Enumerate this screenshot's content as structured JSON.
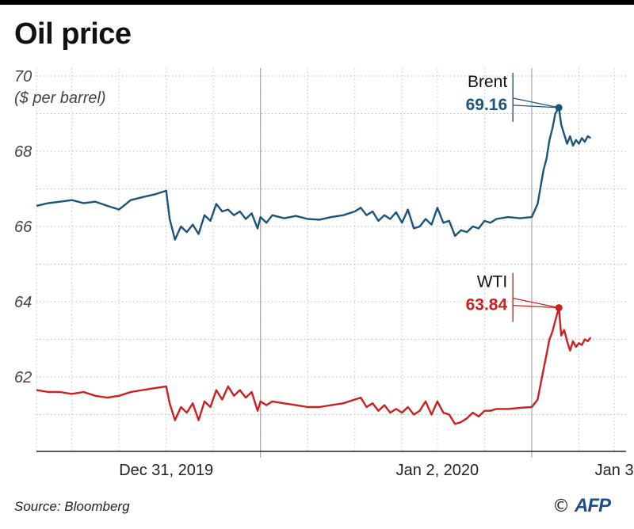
{
  "title": "Oil price",
  "source": "Source: Bloomberg",
  "logo": {
    "copyright": "©",
    "brand": "AFP"
  },
  "chart_data": {
    "type": "line",
    "ylabel_value": "70",
    "ylabel": "($ per barrel)",
    "ylim": [
      60.2,
      70
    ],
    "yticks": [
      62,
      64,
      66,
      68,
      70
    ],
    "xlim": [
      0,
      100
    ],
    "xticks": [
      {
        "label": "Dec 31, 2019",
        "x": 22
      },
      {
        "label": "Jan 2, 2020",
        "x": 68
      },
      {
        "label": "Jan 3",
        "x": 98
      }
    ],
    "day_separators": [
      38,
      84
    ],
    "grid": true,
    "series": [
      {
        "name": "Brent",
        "color": "#1b5479",
        "last_label": "69.16",
        "marker": {
          "x": 88.6,
          "y": 69.16
        },
        "x": [
          0,
          2,
          4,
          6,
          8,
          10,
          12,
          14,
          16,
          18,
          20,
          22,
          22.6,
          23.5,
          24.5,
          25.5,
          26.5,
          27.5,
          28.5,
          29.5,
          30.5,
          31.5,
          32.5,
          33.5,
          34.5,
          35.5,
          36.5,
          37.5,
          38,
          39,
          40,
          42,
          44,
          46,
          48,
          50,
          52,
          54,
          55,
          56,
          57,
          58,
          59,
          60,
          61,
          62,
          63,
          64,
          65,
          66,
          67,
          68,
          69,
          70,
          71,
          72,
          73,
          74,
          75,
          76,
          77,
          78,
          80,
          82,
          84,
          85,
          86,
          86.5,
          87,
          87.5,
          88,
          88.6,
          89,
          89.5,
          90,
          90.5,
          91,
          91.5,
          92,
          92.5,
          93,
          93.5,
          94
        ],
        "values": [
          66.55,
          66.62,
          66.66,
          66.7,
          66.62,
          66.66,
          66.55,
          66.45,
          66.7,
          66.78,
          66.85,
          66.95,
          66.2,
          65.65,
          66.0,
          65.85,
          66.05,
          65.8,
          66.3,
          66.15,
          66.6,
          66.4,
          66.45,
          66.3,
          66.4,
          66.2,
          66.35,
          65.95,
          66.25,
          66.1,
          66.3,
          66.22,
          66.28,
          66.2,
          66.18,
          66.25,
          66.3,
          66.4,
          66.5,
          66.3,
          66.4,
          66.15,
          66.3,
          66.2,
          66.38,
          66.1,
          66.45,
          65.95,
          66.0,
          66.2,
          66.05,
          66.5,
          66.1,
          66.15,
          65.75,
          65.9,
          65.85,
          66.0,
          65.95,
          66.15,
          66.1,
          66.2,
          66.25,
          66.22,
          66.25,
          66.6,
          67.5,
          67.8,
          68.3,
          68.6,
          69.0,
          69.16,
          68.7,
          68.45,
          68.2,
          68.4,
          68.15,
          68.3,
          68.2,
          68.35,
          68.25,
          68.4,
          68.35
        ]
      },
      {
        "name": "WTI",
        "color": "#cc1f1f",
        "last_label": "63.84",
        "marker": {
          "x": 88.6,
          "y": 63.84
        },
        "x": [
          0,
          2,
          4,
          6,
          8,
          10,
          12,
          14,
          16,
          18,
          20,
          22,
          22.6,
          23.5,
          24.5,
          25.5,
          26.5,
          27.5,
          28.5,
          29.5,
          30.5,
          31.5,
          32.5,
          33.5,
          34.5,
          35.5,
          36.5,
          37.5,
          38,
          39,
          40,
          42,
          44,
          46,
          48,
          50,
          52,
          54,
          55,
          56,
          57,
          58,
          59,
          60,
          61,
          62,
          63,
          64,
          65,
          66,
          67,
          68,
          69,
          70,
          71,
          72,
          73,
          74,
          75,
          76,
          77,
          78,
          80,
          82,
          84,
          85,
          86,
          86.5,
          87,
          87.5,
          88,
          88.6,
          89,
          89.5,
          90,
          90.5,
          91,
          91.5,
          92,
          92.5,
          93,
          93.5,
          94
        ],
        "values": [
          61.65,
          61.6,
          61.6,
          61.55,
          61.6,
          61.5,
          61.45,
          61.5,
          61.6,
          61.65,
          61.7,
          61.75,
          61.3,
          60.85,
          61.2,
          61.05,
          61.3,
          60.85,
          61.35,
          61.2,
          61.65,
          61.4,
          61.75,
          61.5,
          61.65,
          61.45,
          61.6,
          61.1,
          61.35,
          61.25,
          61.35,
          61.3,
          61.25,
          61.2,
          61.2,
          61.25,
          61.3,
          61.4,
          61.45,
          61.2,
          61.3,
          61.1,
          61.25,
          61.05,
          61.15,
          61.05,
          61.2,
          61.0,
          61.1,
          61.35,
          61.0,
          61.35,
          61.05,
          61.0,
          60.75,
          60.8,
          60.9,
          61.05,
          60.95,
          61.1,
          61.1,
          61.15,
          61.15,
          61.18,
          61.2,
          61.4,
          62.2,
          62.6,
          63.0,
          63.2,
          63.5,
          63.84,
          63.1,
          63.25,
          62.95,
          62.7,
          62.95,
          62.8,
          62.9,
          62.85,
          63.0,
          62.95,
          63.05
        ]
      }
    ]
  }
}
